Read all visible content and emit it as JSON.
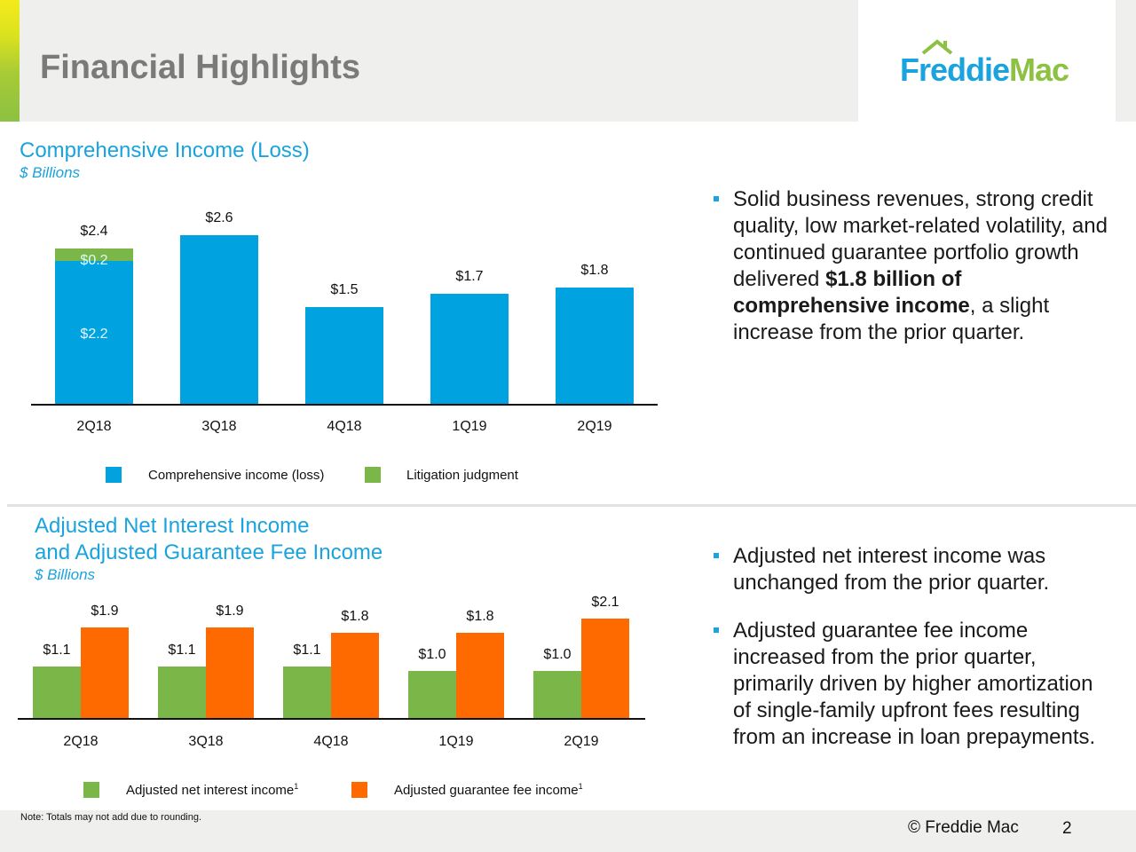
{
  "header": {
    "title": "Financial Highlights",
    "logo_text": "Freddie Mac",
    "logo_part1": "Freddie",
    "logo_part2": "Mac"
  },
  "colors": {
    "blue": "#00a3e0",
    "green": "#7ab648",
    "orange": "#ff6a00",
    "title_blue": "#1aa3dd"
  },
  "chart_data": [
    {
      "type": "bar",
      "title": "Comprehensive Income (Loss)",
      "units": "$ Billions",
      "categories": [
        "2Q18",
        "3Q18",
        "4Q18",
        "1Q19",
        "2Q19"
      ],
      "stacked": true,
      "series": [
        {
          "name": "Comprehensive income (loss)",
          "values": [
            2.2,
            2.6,
            1.5,
            1.7,
            1.8
          ]
        },
        {
          "name": "Litigation judgment",
          "values": [
            0.2,
            0,
            0,
            0,
            0
          ]
        }
      ],
      "total_labels": [
        "$2.4",
        "$2.6",
        "$1.5",
        "$1.7",
        "$1.8"
      ],
      "segment_labels": {
        "0": {
          "base": "$2.2",
          "top": "$0.2"
        }
      },
      "legend_position": "bottom",
      "grid": false
    },
    {
      "type": "bar",
      "title_line1": "Adjusted Net Interest Income",
      "title_line2": "and Adjusted Guarantee Fee Income",
      "units": "$ Billions",
      "categories": [
        "2Q18",
        "3Q18",
        "4Q18",
        "1Q19",
        "2Q19"
      ],
      "series": [
        {
          "name": "Adjusted net interest income",
          "footnote": "1",
          "values": [
            1.1,
            1.1,
            1.1,
            1.0,
            1.0
          ],
          "labels": [
            "$1.1",
            "$1.1",
            "$1.1",
            "$1.0",
            "$1.0"
          ]
        },
        {
          "name": "Adjusted guarantee fee income",
          "footnote": "1",
          "values": [
            1.9,
            1.9,
            1.8,
            1.8,
            2.1
          ],
          "labels": [
            "$1.9",
            "$1.9",
            "$1.8",
            "$1.8",
            "$2.1"
          ]
        }
      ],
      "legend_position": "bottom",
      "grid": false
    }
  ],
  "bullets_top": {
    "pre": "Solid business revenues, strong credit quality, low market-related volatility, and continued guarantee portfolio growth delivered ",
    "bold": "$1.8 billion of comprehensive income",
    "post": ", a slight increase from the prior quarter."
  },
  "bullets_bottom": [
    "Adjusted net interest income was unchanged from the prior quarter.",
    "Adjusted guarantee fee income increased from the prior quarter, primarily driven by higher amortization of single-family upfront fees resulting from an increase in loan prepayments."
  ],
  "footer": {
    "note": "Note:  Totals may not add due to rounding.",
    "copyright": "©  Freddie Mac",
    "page": "2"
  }
}
